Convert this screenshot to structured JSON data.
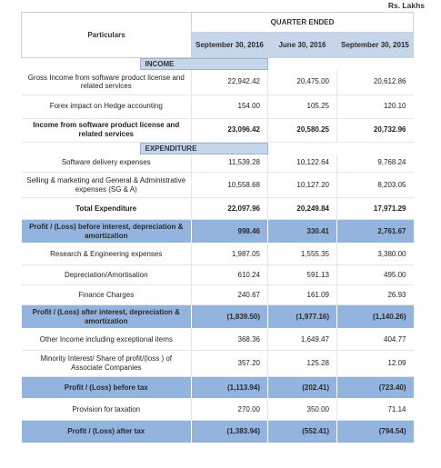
{
  "unit_label": "Rs. Lakhs",
  "header": {
    "particulars_label": "Particulars",
    "group_label": "QUARTER ENDED",
    "columns": [
      "September 30, 2016",
      "June 30, 2016",
      "September 30, 2015"
    ]
  },
  "sections": {
    "income": "INCOME",
    "expenditure": "EXPENDITURE"
  },
  "rows": [
    {
      "label": "Gross Income from software  product license and related services",
      "values": [
        "22,942.42",
        "20,475.00",
        "20,612.86"
      ]
    },
    {
      "label": "Forex impact on Hedge accounting",
      "values": [
        "154.00",
        "105.25",
        "120.10"
      ]
    },
    {
      "label": "Income from software product license and related services",
      "values": [
        "23,096.42",
        "20,580.25",
        "20,732.96"
      ]
    },
    {
      "label": "Software delivery expenses",
      "values": [
        "11,539.28",
        "10,122.64",
        "9,768.24"
      ]
    },
    {
      "label": "Selling & marketing and  General & Administrative expenses  (SG & A)",
      "values": [
        "10,558.68",
        "10,127.20",
        "8,203.05"
      ]
    },
    {
      "label": "Total Expenditure",
      "values": [
        "22,097.96",
        "20,249.84",
        "17,971.29"
      ]
    },
    {
      "label": "Profit / (Loss) before interest, depreciation & amortization",
      "values": [
        "998.46",
        "330.41",
        "2,761.67"
      ]
    },
    {
      "label": "Research & Engineering expenses",
      "values": [
        "1,987.05",
        "1,555.35",
        "3,380.00"
      ]
    },
    {
      "label": "Depreciation/Amortisation",
      "values": [
        "610.24",
        "591.13",
        "495.00"
      ]
    },
    {
      "label": "Finance Charges",
      "values": [
        "240.67",
        "161.09",
        "26.93"
      ]
    },
    {
      "label": "Profit / (Loss) after interest, depreciation & amortization",
      "values": [
        "(1,839.50)",
        "(1,977.16)",
        "(1,140.26)"
      ]
    },
    {
      "label": "Other Income including exceptional items",
      "values": [
        "368.36",
        "1,649.47",
        "404.77"
      ]
    },
    {
      "label": "Minority Interest/ Share of profit/(loss ) of Associate Companies",
      "values": [
        "357.20",
        "125.28",
        "12.09"
      ]
    },
    {
      "label": "Profit / (Loss) before tax",
      "values": [
        "(1,113.94)",
        "(202.41)",
        "(723.40)"
      ]
    },
    {
      "label": "Provision for taxation",
      "values": [
        "270.00",
        "350.00",
        "71.14"
      ]
    },
    {
      "label": "Profit / (Loss)  after tax",
      "values": [
        "(1,383.94)",
        "(552.41)",
        "(794.54)"
      ]
    }
  ],
  "colors": {
    "header_fill": "#c5d5ea",
    "highlight_fill": "#93b4df"
  }
}
